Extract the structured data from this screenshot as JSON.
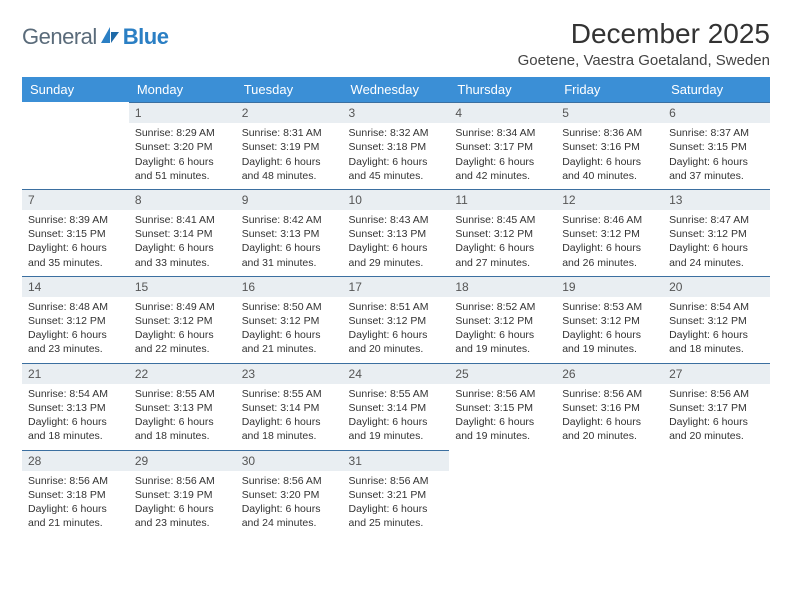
{
  "logo": {
    "text1": "General",
    "text2": "Blue"
  },
  "title": "December 2025",
  "location": "Goetene, Vaestra Goetaland, Sweden",
  "colors": {
    "header_bg": "#3b8fd6",
    "daynum_bg": "#e9eef2",
    "row_divider": "#3b6fa0",
    "logo_gray": "#5a6b7a",
    "logo_blue": "#2b7fc4"
  },
  "dayHeaders": [
    "Sunday",
    "Monday",
    "Tuesday",
    "Wednesday",
    "Thursday",
    "Friday",
    "Saturday"
  ],
  "weeks": [
    [
      {
        "n": "",
        "empty": true
      },
      {
        "n": "1",
        "sr": "Sunrise: 8:29 AM",
        "ss": "Sunset: 3:20 PM",
        "d1": "Daylight: 6 hours",
        "d2": "and 51 minutes."
      },
      {
        "n": "2",
        "sr": "Sunrise: 8:31 AM",
        "ss": "Sunset: 3:19 PM",
        "d1": "Daylight: 6 hours",
        "d2": "and 48 minutes."
      },
      {
        "n": "3",
        "sr": "Sunrise: 8:32 AM",
        "ss": "Sunset: 3:18 PM",
        "d1": "Daylight: 6 hours",
        "d2": "and 45 minutes."
      },
      {
        "n": "4",
        "sr": "Sunrise: 8:34 AM",
        "ss": "Sunset: 3:17 PM",
        "d1": "Daylight: 6 hours",
        "d2": "and 42 minutes."
      },
      {
        "n": "5",
        "sr": "Sunrise: 8:36 AM",
        "ss": "Sunset: 3:16 PM",
        "d1": "Daylight: 6 hours",
        "d2": "and 40 minutes."
      },
      {
        "n": "6",
        "sr": "Sunrise: 8:37 AM",
        "ss": "Sunset: 3:15 PM",
        "d1": "Daylight: 6 hours",
        "d2": "and 37 minutes."
      }
    ],
    [
      {
        "n": "7",
        "sr": "Sunrise: 8:39 AM",
        "ss": "Sunset: 3:15 PM",
        "d1": "Daylight: 6 hours",
        "d2": "and 35 minutes."
      },
      {
        "n": "8",
        "sr": "Sunrise: 8:41 AM",
        "ss": "Sunset: 3:14 PM",
        "d1": "Daylight: 6 hours",
        "d2": "and 33 minutes."
      },
      {
        "n": "9",
        "sr": "Sunrise: 8:42 AM",
        "ss": "Sunset: 3:13 PM",
        "d1": "Daylight: 6 hours",
        "d2": "and 31 minutes."
      },
      {
        "n": "10",
        "sr": "Sunrise: 8:43 AM",
        "ss": "Sunset: 3:13 PM",
        "d1": "Daylight: 6 hours",
        "d2": "and 29 minutes."
      },
      {
        "n": "11",
        "sr": "Sunrise: 8:45 AM",
        "ss": "Sunset: 3:12 PM",
        "d1": "Daylight: 6 hours",
        "d2": "and 27 minutes."
      },
      {
        "n": "12",
        "sr": "Sunrise: 8:46 AM",
        "ss": "Sunset: 3:12 PM",
        "d1": "Daylight: 6 hours",
        "d2": "and 26 minutes."
      },
      {
        "n": "13",
        "sr": "Sunrise: 8:47 AM",
        "ss": "Sunset: 3:12 PM",
        "d1": "Daylight: 6 hours",
        "d2": "and 24 minutes."
      }
    ],
    [
      {
        "n": "14",
        "sr": "Sunrise: 8:48 AM",
        "ss": "Sunset: 3:12 PM",
        "d1": "Daylight: 6 hours",
        "d2": "and 23 minutes."
      },
      {
        "n": "15",
        "sr": "Sunrise: 8:49 AM",
        "ss": "Sunset: 3:12 PM",
        "d1": "Daylight: 6 hours",
        "d2": "and 22 minutes."
      },
      {
        "n": "16",
        "sr": "Sunrise: 8:50 AM",
        "ss": "Sunset: 3:12 PM",
        "d1": "Daylight: 6 hours",
        "d2": "and 21 minutes."
      },
      {
        "n": "17",
        "sr": "Sunrise: 8:51 AM",
        "ss": "Sunset: 3:12 PM",
        "d1": "Daylight: 6 hours",
        "d2": "and 20 minutes."
      },
      {
        "n": "18",
        "sr": "Sunrise: 8:52 AM",
        "ss": "Sunset: 3:12 PM",
        "d1": "Daylight: 6 hours",
        "d2": "and 19 minutes."
      },
      {
        "n": "19",
        "sr": "Sunrise: 8:53 AM",
        "ss": "Sunset: 3:12 PM",
        "d1": "Daylight: 6 hours",
        "d2": "and 19 minutes."
      },
      {
        "n": "20",
        "sr": "Sunrise: 8:54 AM",
        "ss": "Sunset: 3:12 PM",
        "d1": "Daylight: 6 hours",
        "d2": "and 18 minutes."
      }
    ],
    [
      {
        "n": "21",
        "sr": "Sunrise: 8:54 AM",
        "ss": "Sunset: 3:13 PM",
        "d1": "Daylight: 6 hours",
        "d2": "and 18 minutes."
      },
      {
        "n": "22",
        "sr": "Sunrise: 8:55 AM",
        "ss": "Sunset: 3:13 PM",
        "d1": "Daylight: 6 hours",
        "d2": "and 18 minutes."
      },
      {
        "n": "23",
        "sr": "Sunrise: 8:55 AM",
        "ss": "Sunset: 3:14 PM",
        "d1": "Daylight: 6 hours",
        "d2": "and 18 minutes."
      },
      {
        "n": "24",
        "sr": "Sunrise: 8:55 AM",
        "ss": "Sunset: 3:14 PM",
        "d1": "Daylight: 6 hours",
        "d2": "and 19 minutes."
      },
      {
        "n": "25",
        "sr": "Sunrise: 8:56 AM",
        "ss": "Sunset: 3:15 PM",
        "d1": "Daylight: 6 hours",
        "d2": "and 19 minutes."
      },
      {
        "n": "26",
        "sr": "Sunrise: 8:56 AM",
        "ss": "Sunset: 3:16 PM",
        "d1": "Daylight: 6 hours",
        "d2": "and 20 minutes."
      },
      {
        "n": "27",
        "sr": "Sunrise: 8:56 AM",
        "ss": "Sunset: 3:17 PM",
        "d1": "Daylight: 6 hours",
        "d2": "and 20 minutes."
      }
    ],
    [
      {
        "n": "28",
        "sr": "Sunrise: 8:56 AM",
        "ss": "Sunset: 3:18 PM",
        "d1": "Daylight: 6 hours",
        "d2": "and 21 minutes."
      },
      {
        "n": "29",
        "sr": "Sunrise: 8:56 AM",
        "ss": "Sunset: 3:19 PM",
        "d1": "Daylight: 6 hours",
        "d2": "and 23 minutes."
      },
      {
        "n": "30",
        "sr": "Sunrise: 8:56 AM",
        "ss": "Sunset: 3:20 PM",
        "d1": "Daylight: 6 hours",
        "d2": "and 24 minutes."
      },
      {
        "n": "31",
        "sr": "Sunrise: 8:56 AM",
        "ss": "Sunset: 3:21 PM",
        "d1": "Daylight: 6 hours",
        "d2": "and 25 minutes."
      },
      {
        "n": "",
        "empty": true
      },
      {
        "n": "",
        "empty": true
      },
      {
        "n": "",
        "empty": true
      }
    ]
  ]
}
